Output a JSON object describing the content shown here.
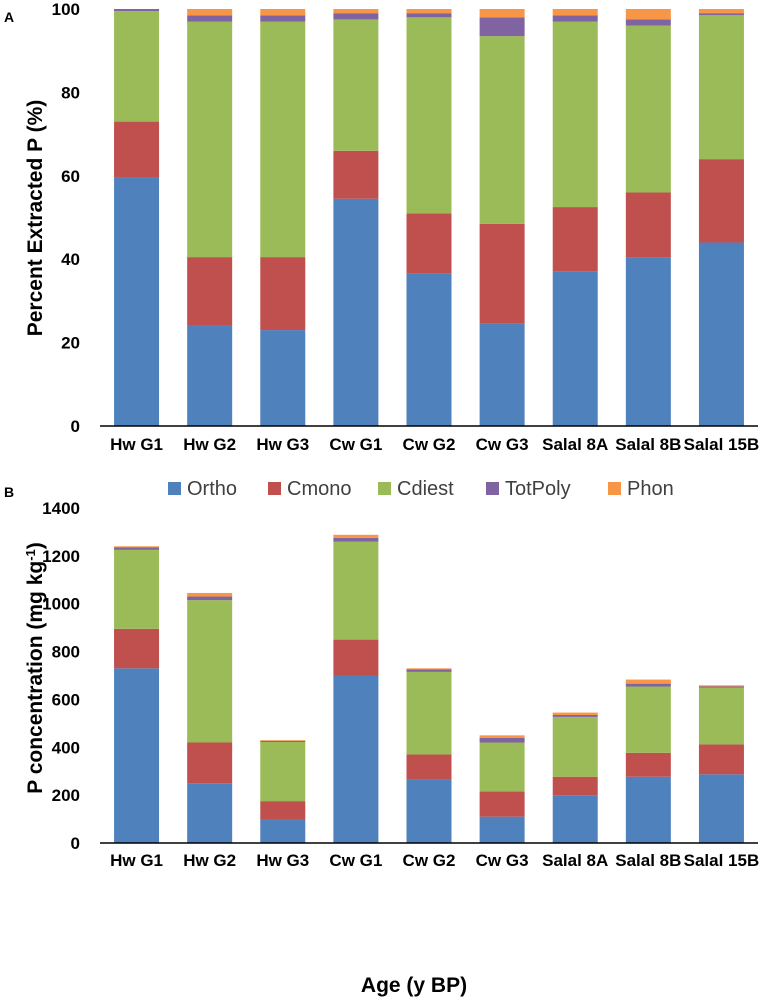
{
  "colors": {
    "Ortho": "#4f81bd",
    "Cmono": "#c0504d",
    "Cdiest": "#9bbb59",
    "TotPoly": "#8064a2",
    "Phon": "#f79646"
  },
  "legend": [
    "Ortho",
    "Cmono",
    "Cdiest",
    "TotPoly",
    "Phon"
  ],
  "chart_data": [
    {
      "panel": "A",
      "type": "bar",
      "stacked": true,
      "ylabel": "Percent Extracted P (%)",
      "ylim": [
        0,
        100
      ],
      "yticks": [
        0,
        20,
        40,
        60,
        80,
        100
      ],
      "categories": [
        "Hw G1",
        "Hw G2",
        "Hw G3",
        "Cw G1",
        "Cw G2",
        "Cw G3",
        "Salal 8A",
        "Salal 8B",
        "Salal 15B"
      ],
      "series": [
        {
          "name": "Ortho",
          "values": [
            59.5,
            24,
            23,
            54.5,
            36.5,
            24.5,
            37,
            40.5,
            44
          ]
        },
        {
          "name": "Cmono",
          "values": [
            13.5,
            16.5,
            17.5,
            11.5,
            14.5,
            24,
            15.5,
            15.5,
            20
          ]
        },
        {
          "name": "Cdiest",
          "values": [
            26.5,
            56.5,
            56.5,
            31.5,
            47,
            45,
            44.5,
            40,
            34.5
          ]
        },
        {
          "name": "TotPoly",
          "values": [
            0.5,
            1.5,
            1.5,
            1.5,
            1,
            4.5,
            1.5,
            1.5,
            0.5
          ]
        },
        {
          "name": "Phon",
          "values": [
            0,
            1.5,
            1.5,
            1,
            1,
            2,
            1.5,
            2.5,
            1
          ]
        }
      ]
    },
    {
      "panel": "B",
      "type": "bar",
      "stacked": true,
      "ylabel": "P concentration (mg kg",
      "ylabel_sup": "-1",
      "ylabel_end": ")",
      "xlabel": "Age (y BP)",
      "ylim": [
        0,
        1400
      ],
      "yticks": [
        0,
        200,
        400,
        600,
        800,
        1000,
        1200,
        1400
      ],
      "categories": [
        "Hw G1",
        "Hw G2",
        "Hw G3",
        "Cw G1",
        "Cw G2",
        "Cw G3",
        "Salal 8A",
        "Salal 8B",
        "Salal 15B"
      ],
      "series": [
        {
          "name": "Ortho",
          "values": [
            730,
            250,
            98,
            700,
            265,
            110,
            200,
            277,
            287
          ]
        },
        {
          "name": "Cmono",
          "values": [
            165,
            170,
            77,
            150,
            105,
            105,
            77,
            100,
            125
          ]
        },
        {
          "name": "Cdiest",
          "values": [
            330,
            595,
            247,
            410,
            345,
            205,
            250,
            277,
            237
          ]
        },
        {
          "name": "TotPoly",
          "values": [
            10,
            15,
            5,
            15,
            10,
            20,
            8,
            12,
            5
          ]
        },
        {
          "name": "Phon",
          "values": [
            5,
            15,
            3,
            13,
            5,
            10,
            10,
            17,
            5
          ]
        }
      ]
    }
  ]
}
